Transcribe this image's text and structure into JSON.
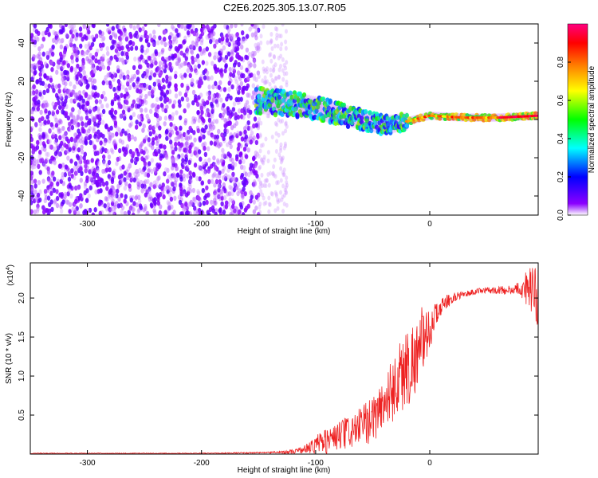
{
  "chart_data": [
    {
      "type": "heatmap",
      "title": "C2E6.2025.305.13.07.R05",
      "xlabel": "Height of straight line (km)",
      "ylabel": "Frequency (Hz)",
      "xlim": [
        -350,
        95
      ],
      "ylim": [
        -50,
        50
      ],
      "xticks": [
        -300,
        -200,
        -100,
        0
      ],
      "xtick_labels": [
        "-300",
        "-200",
        "-100",
        "0"
      ],
      "yticks": [
        -40,
        -20,
        0,
        20,
        40
      ],
      "ytick_labels": [
        "-40",
        "-20",
        "0",
        "20",
        "40"
      ],
      "colorbar": {
        "label": "Normalized spectral amplitude",
        "range": [
          0,
          1
        ],
        "ticks": [
          0.0,
          0.2,
          0.4,
          0.6,
          0.8
        ],
        "tick_labels": [
          "0.0",
          "0.2",
          "0.4",
          "0.6",
          "0.8"
        ],
        "colors": [
          "#ffffff",
          "#8b00ff",
          "#0000ff",
          "#00ffff",
          "#00ff00",
          "#ffff00",
          "#ff8000",
          "#ff0000",
          "#ff0080"
        ]
      },
      "regions": [
        {
          "name": "noise",
          "x_range": [
            -350,
            -150
          ],
          "y_range": [
            -50,
            50
          ],
          "level": 0.08
        },
        {
          "name": "noise-fade",
          "x_range": [
            -150,
            -125
          ],
          "y_range": [
            -50,
            50
          ],
          "level": 0.03
        },
        {
          "name": "signal-trace",
          "points": [
            [
              -150,
              10
            ],
            [
              -120,
              8
            ],
            [
              -100,
              6
            ],
            [
              -80,
              3
            ],
            [
              -60,
              0
            ],
            [
              -40,
              -3
            ],
            [
              -20,
              -1
            ],
            [
              0,
              2
            ],
            [
              30,
              1
            ],
            [
              60,
              1
            ],
            [
              95,
              2
            ]
          ],
          "level": 0.75
        }
      ]
    },
    {
      "type": "line",
      "xlabel": "Height of straight line (km)",
      "ylabel": "SNR (10 * v/v)",
      "y_multiplier_label": "(x10",
      "y_multiplier_exp": "4",
      "y_multiplier_close": ")",
      "xlim": [
        -350,
        95
      ],
      "ylim": [
        0,
        2.45
      ],
      "xticks": [
        -300,
        -200,
        -100,
        0
      ],
      "xtick_labels": [
        "-300",
        "-200",
        "-100",
        "0"
      ],
      "yticks": [
        0.5,
        1.0,
        1.5,
        2.0
      ],
      "ytick_labels": [
        "0.5",
        "1.0",
        "1.5",
        "2.0"
      ],
      "series": [
        {
          "name": "SNR",
          "color": "#ee2222",
          "envelope": {
            "x": [
              -350,
              -200,
              -140,
              -120,
              -110,
              -100,
              -90,
              -80,
              -70,
              -60,
              -50,
              -40,
              -30,
              -20,
              -10,
              0,
              10,
              20,
              30,
              40,
              50,
              60,
              70,
              80,
              85,
              90,
              95
            ],
            "base": [
              0.01,
              0.01,
              0.02,
              0.03,
              0.06,
              0.12,
              0.18,
              0.22,
              0.28,
              0.35,
              0.45,
              0.65,
              0.9,
              1.1,
              1.3,
              1.6,
              1.9,
              2.0,
              2.05,
              2.08,
              2.1,
              2.1,
              2.1,
              2.12,
              2.15,
              2.1,
              2.0
            ],
            "amp": [
              0.005,
              0.005,
              0.01,
              0.03,
              0.05,
              0.12,
              0.18,
              0.2,
              0.22,
              0.25,
              0.3,
              0.35,
              0.45,
              0.55,
              0.45,
              0.25,
              0.12,
              0.06,
              0.04,
              0.04,
              0.04,
              0.05,
              0.06,
              0.1,
              0.25,
              0.3,
              0.5
            ]
          }
        }
      ]
    }
  ]
}
